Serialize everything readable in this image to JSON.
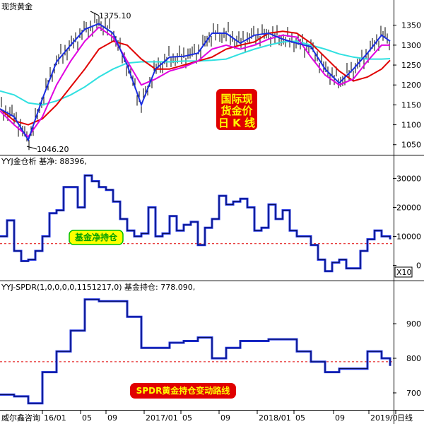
{
  "chart_data": [
    {
      "type": "candlestick",
      "title": "现货黄金",
      "annotation_box": [
        "国际现",
        "货金价",
        "日 K 线"
      ],
      "high_label": "1375.10",
      "low_label": "1046.20",
      "y_ticks": [
        1050,
        1100,
        1150,
        1200,
        1250,
        1300,
        1350
      ],
      "ylim": [
        1030,
        1385
      ],
      "x": [
        0,
        20,
        40,
        60,
        80,
        100,
        120,
        140,
        160,
        180,
        200,
        220,
        240,
        260,
        280,
        300,
        320,
        340,
        360,
        380,
        400,
        420,
        440,
        460,
        480,
        500,
        520,
        540,
        552
      ],
      "price": [
        1140,
        1120,
        1062,
        1165,
        1258,
        1300,
        1340,
        1354,
        1330,
        1250,
        1150,
        1240,
        1270,
        1272,
        1280,
        1330,
        1330,
        1305,
        1325,
        1330,
        1315,
        1305,
        1296,
        1240,
        1205,
        1240,
        1280,
        1325,
        1310
      ],
      "ma_red": [
        1140,
        1110,
        1100,
        1115,
        1150,
        1195,
        1240,
        1290,
        1310,
        1300,
        1265,
        1240,
        1240,
        1250,
        1260,
        1270,
        1290,
        1300,
        1308,
        1330,
        1335,
        1330,
        1305,
        1270,
        1235,
        1210,
        1220,
        1240,
        1262
      ],
      "ma_magenta": [
        1135,
        1100,
        1070,
        1120,
        1200,
        1260,
        1310,
        1345,
        1320,
        1260,
        1200,
        1215,
        1235,
        1245,
        1260,
        1290,
        1300,
        1290,
        1300,
        1315,
        1325,
        1320,
        1270,
        1225,
        1200,
        1215,
        1260,
        1300,
        1300
      ],
      "ma_cyan": [
        1185,
        1175,
        1155,
        1150,
        1160,
        1175,
        1195,
        1220,
        1240,
        1255,
        1258,
        1258,
        1258,
        1260,
        1260,
        1262,
        1265,
        1278,
        1290,
        1300,
        1308,
        1310,
        1300,
        1290,
        1278,
        1270,
        1265,
        1265,
        1266
      ],
      "series": [
        {
          "name": "",
          "color": "#1a2de0"
        },
        {
          "name": "",
          "color": "#e000e0"
        },
        {
          "name": "",
          "color": "#e00000"
        },
        {
          "name": "",
          "color": "#30e0e0"
        }
      ]
    },
    {
      "type": "line",
      "title": "YYJ金仓析 基净: 88396,",
      "y_ticks": [
        0,
        10000,
        20000,
        30000
      ],
      "unit_label": "X10",
      "ylim": [
        -4000,
        34000
      ],
      "reference_line": 7500,
      "label_box": "基金净持仓",
      "x": [
        0,
        10,
        20,
        30,
        40,
        50,
        60,
        70,
        80,
        90,
        100,
        110,
        120,
        130,
        140,
        150,
        160,
        170,
        180,
        190,
        200,
        210,
        220,
        230,
        240,
        250,
        260,
        270,
        280,
        290,
        300,
        310,
        320,
        330,
        340,
        350,
        360,
        370,
        380,
        390,
        400,
        410,
        420,
        430,
        440,
        450,
        460,
        470,
        480,
        490,
        500,
        510,
        520,
        530,
        540,
        552
      ],
      "values": [
        10000,
        15500,
        5000,
        1500,
        2000,
        5000,
        10000,
        18000,
        19000,
        27000,
        27000,
        20000,
        31000,
        29000,
        27000,
        26000,
        22000,
        16000,
        12000,
        10000,
        11000,
        20000,
        10000,
        11000,
        17000,
        12000,
        14000,
        15000,
        7000,
        13000,
        16000,
        24000,
        21000,
        22000,
        23000,
        20000,
        12000,
        13000,
        21000,
        16000,
        19000,
        12000,
        10000,
        10000,
        7000,
        2000,
        -2000,
        1000,
        2000,
        -1000,
        -1000,
        5000,
        9000,
        12000,
        10000,
        9000
      ]
    },
    {
      "type": "line",
      "title": "YYJ-SPDR(1,0,0,0,0,1151217,0) 基金持仓: 778.090,",
      "y_ticks": [
        700,
        800,
        900
      ],
      "ylim": [
        655,
        990
      ],
      "reference_line": 790,
      "label_box": "SPDR黄金持仓变动路线",
      "x": [
        0,
        20,
        40,
        60,
        80,
        100,
        120,
        140,
        160,
        180,
        200,
        220,
        240,
        260,
        280,
        300,
        320,
        340,
        360,
        380,
        400,
        420,
        440,
        460,
        480,
        500,
        520,
        540,
        552
      ],
      "values": [
        695,
        690,
        670,
        760,
        820,
        880,
        970,
        965,
        965,
        920,
        830,
        830,
        845,
        850,
        860,
        800,
        830,
        850,
        850,
        855,
        855,
        820,
        790,
        760,
        770,
        770,
        820,
        800,
        778
      ]
    }
  ],
  "footer": {
    "source": "威尔鑫咨询",
    "x_labels": [
      "16/01",
      "05",
      "09",
      "2017/01",
      "05",
      "09",
      "2018/01",
      "05",
      "09",
      "2019/0",
      "日线"
    ]
  }
}
